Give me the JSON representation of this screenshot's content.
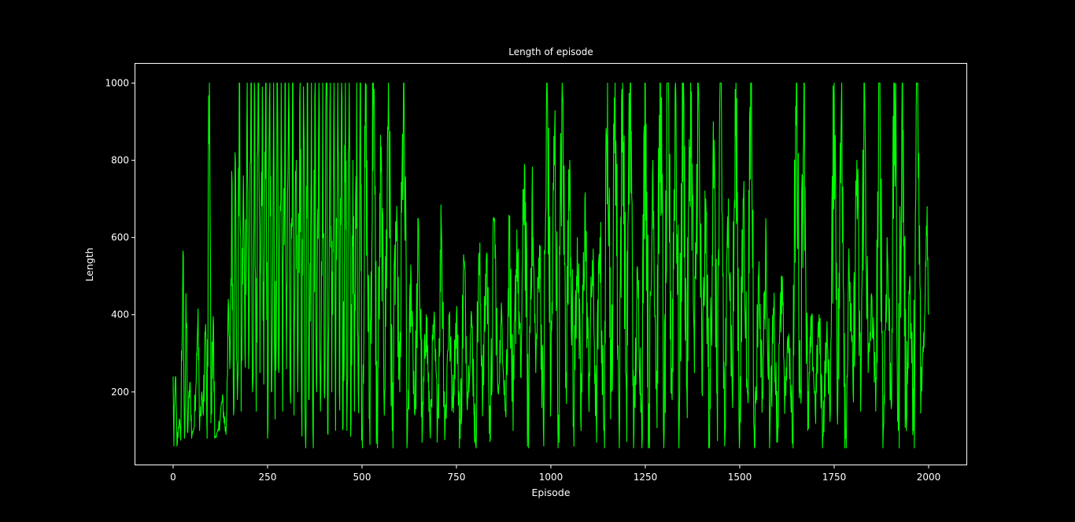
{
  "chart_data": {
    "type": "line",
    "title": "Length of episode",
    "xlabel": "Episode",
    "ylabel": "Length",
    "xlim": [
      -100,
      2100
    ],
    "ylim": [
      12,
      1050
    ],
    "x_ticks": [
      0,
      250,
      500,
      750,
      1000,
      1250,
      1500,
      1750,
      2000
    ],
    "y_ticks": [
      200,
      400,
      600,
      800,
      1000
    ],
    "grid": false,
    "legend": "none",
    "background_color": "#000000",
    "axes_color": "#ffffff",
    "series": [
      {
        "color": "#00ff00",
        "n_points": 2000,
        "points": [
          [
            0,
            240
          ],
          [
            2,
            60
          ],
          [
            6,
            240
          ],
          [
            10,
            60
          ],
          [
            16,
            130
          ],
          [
            20,
            75
          ],
          [
            26,
            565
          ],
          [
            30,
            80
          ],
          [
            34,
            455
          ],
          [
            38,
            95
          ],
          [
            44,
            220
          ],
          [
            50,
            90
          ],
          [
            56,
            110
          ],
          [
            62,
            300
          ],
          [
            66,
            415
          ],
          [
            70,
            100
          ],
          [
            76,
            200
          ],
          [
            80,
            140
          ],
          [
            86,
            375
          ],
          [
            90,
            80
          ],
          [
            96,
            1000
          ],
          [
            100,
            120
          ],
          [
            106,
            395
          ],
          [
            110,
            80
          ],
          [
            120,
            100
          ],
          [
            130,
            180
          ],
          [
            140,
            90
          ],
          [
            146,
            440
          ],
          [
            150,
            260
          ],
          [
            156,
            740
          ],
          [
            160,
            140
          ],
          [
            164,
            820
          ],
          [
            170,
            180
          ],
          [
            176,
            1000
          ],
          [
            180,
            150
          ],
          [
            186,
            760
          ],
          [
            190,
            300
          ],
          [
            196,
            1000
          ],
          [
            200,
            260
          ],
          [
            206,
            1000
          ],
          [
            210,
            200
          ],
          [
            216,
            950
          ],
          [
            220,
            150
          ],
          [
            226,
            1000
          ],
          [
            230,
            250
          ],
          [
            236,
            990
          ],
          [
            240,
            220
          ],
          [
            246,
            1000
          ],
          [
            250,
            80
          ],
          [
            256,
            1000
          ],
          [
            260,
            200
          ],
          [
            266,
            1000
          ],
          [
            270,
            130
          ],
          [
            276,
            1000
          ],
          [
            280,
            250
          ],
          [
            286,
            1000
          ],
          [
            290,
            150
          ],
          [
            296,
            1000
          ],
          [
            300,
            260
          ],
          [
            306,
            1000
          ],
          [
            310,
            200
          ],
          [
            316,
            1000
          ],
          [
            320,
            140
          ],
          [
            326,
            800
          ],
          [
            330,
            200
          ],
          [
            336,
            1000
          ],
          [
            340,
            160
          ],
          [
            346,
            900
          ],
          [
            350,
            90
          ],
          [
            356,
            1000
          ],
          [
            360,
            180
          ],
          [
            366,
            1000
          ],
          [
            370,
            100
          ],
          [
            376,
            1000
          ],
          [
            380,
            200
          ],
          [
            386,
            1000
          ],
          [
            390,
            150
          ],
          [
            396,
            1000
          ],
          [
            400,
            200
          ],
          [
            406,
            1000
          ],
          [
            410,
            90
          ],
          [
            416,
            1000
          ],
          [
            420,
            200
          ],
          [
            426,
            1000
          ],
          [
            430,
            100
          ],
          [
            436,
            1000
          ],
          [
            440,
            200
          ],
          [
            446,
            1000
          ],
          [
            450,
            110
          ],
          [
            456,
            1000
          ],
          [
            460,
            100
          ],
          [
            466,
            1000
          ],
          [
            470,
            85
          ],
          [
            476,
            800
          ],
          [
            480,
            150
          ],
          [
            486,
            1000
          ],
          [
            490,
            200
          ],
          [
            496,
            1000
          ],
          [
            500,
            110
          ],
          [
            510,
            900
          ],
          [
            520,
            140
          ],
          [
            530,
            1000
          ],
          [
            540,
            100
          ],
          [
            550,
            770
          ],
          [
            560,
            200
          ],
          [
            570,
            1000
          ],
          [
            580,
            100
          ],
          [
            590,
            640
          ],
          [
            600,
            200
          ],
          [
            610,
            1000
          ],
          [
            620,
            80
          ],
          [
            630,
            500
          ],
          [
            640,
            140
          ],
          [
            650,
            620
          ],
          [
            660,
            100
          ],
          [
            670,
            400
          ],
          [
            680,
            100
          ],
          [
            690,
            380
          ],
          [
            700,
            120
          ],
          [
            710,
            630
          ],
          [
            720,
            100
          ],
          [
            730,
            400
          ],
          [
            740,
            160
          ],
          [
            750,
            400
          ],
          [
            760,
            80
          ],
          [
            770,
            540
          ],
          [
            780,
            200
          ],
          [
            790,
            400
          ],
          [
            800,
            80
          ],
          [
            810,
            560
          ],
          [
            820,
            200
          ],
          [
            830,
            560
          ],
          [
            840,
            80
          ],
          [
            850,
            650
          ],
          [
            860,
            200
          ],
          [
            870,
            400
          ],
          [
            880,
            150
          ],
          [
            890,
            600
          ],
          [
            900,
            100
          ],
          [
            910,
            620
          ],
          [
            920,
            240
          ],
          [
            930,
            790
          ],
          [
            940,
            100
          ],
          [
            950,
            700
          ],
          [
            960,
            250
          ],
          [
            970,
            580
          ],
          [
            980,
            110
          ],
          [
            990,
            1000
          ],
          [
            1000,
            200
          ],
          [
            1010,
            880
          ],
          [
            1020,
            140
          ],
          [
            1030,
            1000
          ],
          [
            1040,
            250
          ],
          [
            1050,
            800
          ],
          [
            1060,
            130
          ],
          [
            1070,
            600
          ],
          [
            1080,
            100
          ],
          [
            1090,
            700
          ],
          [
            1100,
            200
          ],
          [
            1110,
            540
          ],
          [
            1120,
            140
          ],
          [
            1130,
            600
          ],
          [
            1140,
            100
          ],
          [
            1150,
            1000
          ],
          [
            1160,
            200
          ],
          [
            1170,
            1000
          ],
          [
            1180,
            150
          ],
          [
            1190,
            1000
          ],
          [
            1200,
            200
          ],
          [
            1210,
            1000
          ],
          [
            1220,
            100
          ],
          [
            1230,
            500
          ],
          [
            1240,
            150
          ],
          [
            1250,
            1000
          ],
          [
            1260,
            90
          ],
          [
            1270,
            800
          ],
          [
            1280,
            200
          ],
          [
            1290,
            1000
          ],
          [
            1300,
            100
          ],
          [
            1310,
            1000
          ],
          [
            1320,
            200
          ],
          [
            1330,
            1000
          ],
          [
            1340,
            130
          ],
          [
            1350,
            1000
          ],
          [
            1360,
            200
          ],
          [
            1370,
            1000
          ],
          [
            1380,
            250
          ],
          [
            1390,
            1000
          ],
          [
            1400,
            200
          ],
          [
            1410,
            700
          ],
          [
            1420,
            60
          ],
          [
            1430,
            900
          ],
          [
            1440,
            200
          ],
          [
            1450,
            1000
          ],
          [
            1460,
            60
          ],
          [
            1470,
            700
          ],
          [
            1480,
            200
          ],
          [
            1490,
            1000
          ],
          [
            1500,
            80
          ],
          [
            1510,
            700
          ],
          [
            1520,
            200
          ],
          [
            1530,
            1000
          ],
          [
            1540,
            60
          ],
          [
            1550,
            500
          ],
          [
            1560,
            200
          ],
          [
            1570,
            600
          ],
          [
            1580,
            100
          ],
          [
            1590,
            400
          ],
          [
            1600,
            70
          ],
          [
            1610,
            500
          ],
          [
            1620,
            200
          ],
          [
            1630,
            350
          ],
          [
            1640,
            100
          ],
          [
            1650,
            1000
          ],
          [
            1660,
            200
          ],
          [
            1670,
            1000
          ],
          [
            1680,
            100
          ],
          [
            1690,
            380
          ],
          [
            1700,
            150
          ],
          [
            1710,
            400
          ],
          [
            1720,
            90
          ],
          [
            1730,
            350
          ],
          [
            1740,
            150
          ],
          [
            1750,
            1000
          ],
          [
            1760,
            200
          ],
          [
            1770,
            1000
          ],
          [
            1780,
            80
          ],
          [
            1790,
            500
          ],
          [
            1800,
            200
          ],
          [
            1810,
            800
          ],
          [
            1820,
            150
          ],
          [
            1830,
            1000
          ],
          [
            1840,
            250
          ],
          [
            1850,
            440
          ],
          [
            1860,
            150
          ],
          [
            1870,
            1000
          ],
          [
            1880,
            100
          ],
          [
            1890,
            600
          ],
          [
            1900,
            200
          ],
          [
            1910,
            1000
          ],
          [
            1920,
            100
          ],
          [
            1930,
            1000
          ],
          [
            1940,
            150
          ],
          [
            1950,
            500
          ],
          [
            1960,
            100
          ],
          [
            1970,
            1000
          ],
          [
            1980,
            200
          ],
          [
            1990,
            400
          ],
          [
            1996,
            680
          ],
          [
            2000,
            400
          ]
        ]
      }
    ]
  }
}
